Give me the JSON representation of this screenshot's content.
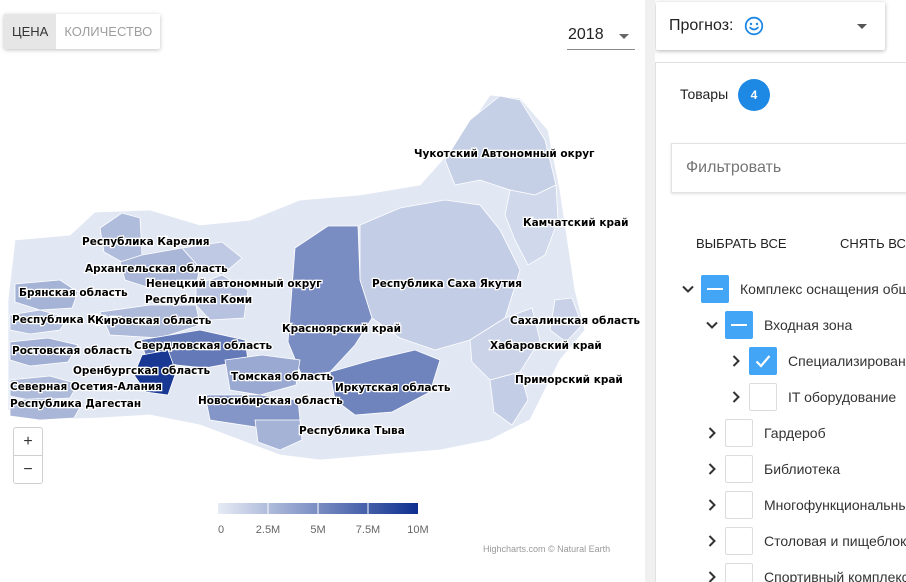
{
  "toggle": {
    "price_label": "ЦЕНА",
    "quantity_label": "КОЛИЧЕСТВО",
    "active": "price"
  },
  "year": {
    "selected": "2018"
  },
  "map": {
    "regions": [
      {
        "name": "Чукотский Автономный округ",
        "value": 1.5
      },
      {
        "name": "Камчатский край",
        "value": 1.0
      },
      {
        "name": "Республика Карелия",
        "value": 2.5
      },
      {
        "name": "Архангельская область",
        "value": 2.8
      },
      {
        "name": "Ненецкий автономный округ",
        "value": 1.8
      },
      {
        "name": "Брянская область",
        "value": 3.0
      },
      {
        "name": "Республика Коми",
        "value": 2.2
      },
      {
        "name": "Республика Саха Якутия",
        "value": 1.6
      },
      {
        "name": "Республика Крым",
        "value": 2.4
      },
      {
        "name": "Кировская область",
        "value": 2.6
      },
      {
        "name": "Красноярский край",
        "value": 5.0
      },
      {
        "name": "Сахалинская область",
        "value": 1.4
      },
      {
        "name": "Ростовская область",
        "value": 3.2
      },
      {
        "name": "Свердловская область",
        "value": 6.0
      },
      {
        "name": "Хабаровский край",
        "value": 1.3
      },
      {
        "name": "Оренбургская область",
        "value": 9.5
      },
      {
        "name": "Томская область",
        "value": 3.5
      },
      {
        "name": "Приморский край",
        "value": 1.6
      },
      {
        "name": "Северная Осетия-Алания",
        "value": 2.6
      },
      {
        "name": "Иркутская область",
        "value": 5.5
      },
      {
        "name": "Республика Дагестан",
        "value": 2.8
      },
      {
        "name": "Новосибирская область",
        "value": 4.5
      },
      {
        "name": "Республика Тыва",
        "value": 3.0
      }
    ],
    "color_scale": {
      "min": 0,
      "max": 10000000,
      "min_color": "#e6ebf5",
      "max_color": "#0d2f8f",
      "tick_labels": [
        "0",
        "2.5M",
        "5M",
        "7.5M",
        "10M"
      ]
    },
    "zoom_in_label": "+",
    "zoom_out_label": "−",
    "credits": "Highcharts.com © Natural Earth"
  },
  "forecast": {
    "label": "Прогноз:",
    "icon": "smiley-icon"
  },
  "goods": {
    "label": "Товары",
    "count": "4"
  },
  "filter": {
    "placeholder": "Фильтровать"
  },
  "actions": {
    "select_all": "ВЫБРАТЬ ВСЕ",
    "deselect_all": "СНЯТЬ ВСЕ"
  },
  "tree": [
    {
      "label": "Комплекс оснащения общеобразовательной школы",
      "state": "indeterminate",
      "expanded": true,
      "level": 0
    },
    {
      "label": "Входная зона",
      "state": "indeterminate",
      "expanded": true,
      "level": 1
    },
    {
      "label": "Специализированное оборудование",
      "state": "checked",
      "expanded": false,
      "level": 2
    },
    {
      "label": "IT оборудование",
      "state": "unchecked",
      "expanded": false,
      "level": 2
    },
    {
      "label": "Гардероб",
      "state": "unchecked",
      "expanded": false,
      "level": 1
    },
    {
      "label": "Библиотека",
      "state": "unchecked",
      "expanded": false,
      "level": 1
    },
    {
      "label": "Многофункциональный зал",
      "state": "unchecked",
      "expanded": false,
      "level": 1
    },
    {
      "label": "Столовая и пищеблок",
      "state": "unchecked",
      "expanded": false,
      "level": 1
    },
    {
      "label": "Спортивный комплекс",
      "state": "unchecked",
      "expanded": false,
      "level": 1
    }
  ]
}
